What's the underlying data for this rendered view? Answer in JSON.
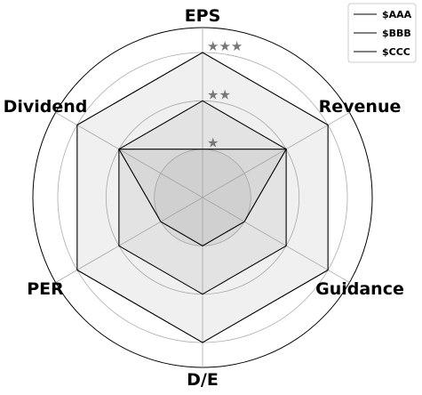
{
  "chart_data": {
    "type": "radar",
    "axes": [
      "EPS",
      "Revenue",
      "Guidance",
      "D/E",
      "PER",
      "Dividend"
    ],
    "rmax": 3,
    "grid": true,
    "ring_labels": [
      "★",
      "★★",
      "★★★"
    ],
    "legend": {
      "position": "top-right",
      "entries": [
        "$AAA",
        "$BBB",
        "$CCC"
      ]
    },
    "series": [
      {
        "name": "$AAA",
        "values": [
          3,
          3,
          3,
          3,
          3,
          3
        ]
      },
      {
        "name": "$BBB",
        "values": [
          2,
          2,
          2,
          2,
          2,
          2
        ]
      },
      {
        "name": "$CCC",
        "values": [
          1,
          2,
          1,
          1,
          1,
          2
        ]
      }
    ],
    "colors": {
      "line": "#000000",
      "fill": "#999999",
      "grid": "#aaaaaa",
      "frame": "#000000",
      "ring_label": "#777777",
      "inner_fill": "#cccccc"
    }
  }
}
